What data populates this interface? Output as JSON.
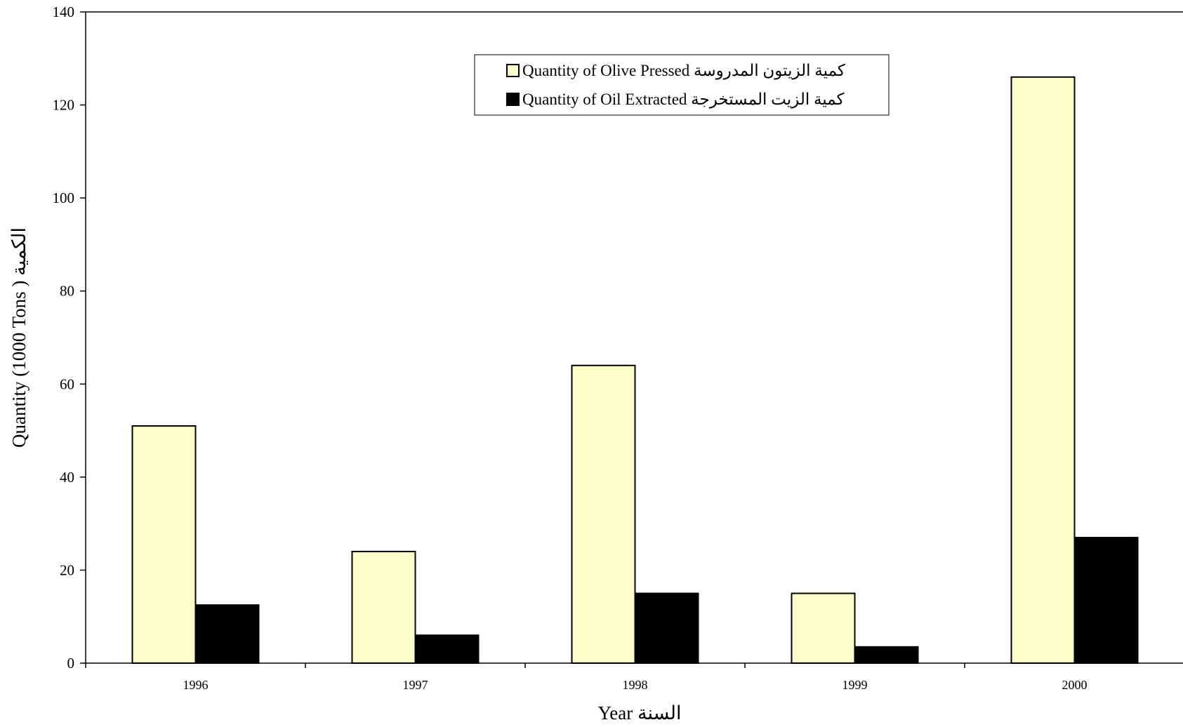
{
  "chart_data": {
    "type": "bar",
    "categories": [
      "1996",
      "1997",
      "1998",
      "1999",
      "2000"
    ],
    "series": [
      {
        "name": "Quantity of  Olive Pressed كمية الزيتون المدروسة",
        "values": [
          51,
          24,
          64,
          15,
          126
        ],
        "color": "#FFFFCC"
      },
      {
        "name": "Quantity of Oil Extracted  كمية الزيت المستخرجة",
        "values": [
          12.5,
          6,
          15,
          3.5,
          27
        ],
        "color": "#000000"
      }
    ],
    "title": "",
    "xlabel": "Year السنة",
    "ylabel": "Quantity (1000 Tons ) الكمية",
    "ylim": [
      0,
      140
    ],
    "yticks": [
      0,
      20,
      40,
      60,
      80,
      100,
      120,
      140
    ],
    "grid": false,
    "legend_position": "top-center"
  }
}
